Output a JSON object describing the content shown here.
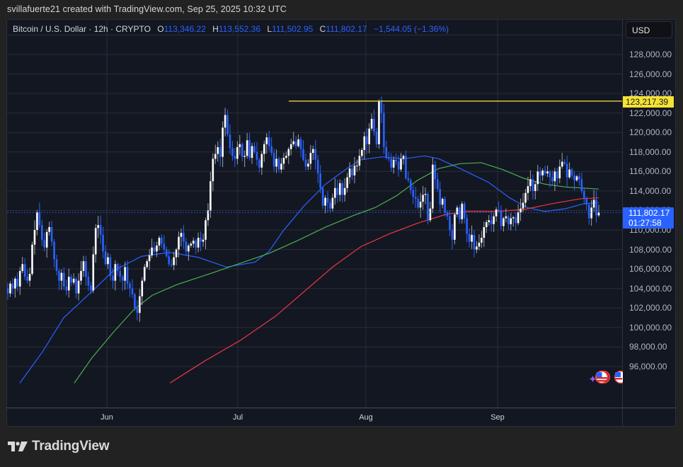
{
  "credit": "svillafuerte21 created with TradingView.com, Sep 25, 2025 10:32 UTC",
  "legend": {
    "symbol": "Bitcoin / U.S. Dollar · 12h · CRYPTO",
    "open_label": "O",
    "open": "113,346.22",
    "high_label": "H",
    "high": "113,552.36",
    "low_label": "L",
    "low": "111,502.95",
    "close_label": "C",
    "close": "111,802.17",
    "change": "−1,544.05 (−1.36%)"
  },
  "currency_button": "USD",
  "price_axis": {
    "ticks": [
      "128,000.00",
      "126,000.00",
      "124,000.00",
      "122,000.00",
      "120,000.00",
      "118,000.00",
      "116,000.00",
      "114,000.00",
      "112,000.00",
      "110,000.00",
      "108,000.00",
      "106,000.00",
      "104,000.00",
      "102,000.00",
      "100,000.00",
      "98,000.00",
      "96,000.00"
    ],
    "highlight_level": "123,217.39",
    "current_price": "111,802.17",
    "countdown": "01:27:58"
  },
  "time_axis": {
    "labels": [
      "Jun",
      "Jul",
      "Aug",
      "Sep"
    ]
  },
  "colors": {
    "up": "#ffffff",
    "down": "#2962ff",
    "ma_fast": "#2962ff",
    "ma_mid": "#4caf50",
    "ma_slow": "#f23645",
    "level_line": "#d4c43a",
    "background": "#131722",
    "grid": "#2a2e39"
  },
  "brand": "TradingView",
  "chart_data": {
    "type": "candlestick",
    "title": "Bitcoin / U.S. Dollar · 12h · CRYPTO",
    "ylabel": "USD",
    "ylim": [
      94200,
      130000
    ],
    "x_labels": [
      "Jun",
      "Jul",
      "Aug",
      "Sep"
    ],
    "horizontal_level": 123217.39,
    "last_price": 111802.17,
    "series": [
      {
        "name": "Close (approx path)",
        "values": [
          103500,
          104500,
          104000,
          105000,
          104200,
          105800,
          106500,
          105200,
          104800,
          105500,
          108500,
          110000,
          111800,
          110500,
          109000,
          108200,
          109800,
          110300,
          108800,
          107000,
          105800,
          104800,
          105600,
          104200,
          103800,
          105200,
          104600,
          105000,
          103500,
          104800,
          105800,
          106800,
          105200,
          104300,
          103800,
          107500,
          110200,
          110500,
          109500,
          107800,
          106500,
          107200,
          105300,
          104800,
          106500,
          105800,
          105200,
          104800,
          106200,
          104500,
          104000,
          103400,
          102000,
          101500,
          103200,
          104800,
          106200,
          106800,
          107400,
          108200,
          107800,
          108400,
          109200,
          108600,
          108000,
          107300,
          106500,
          106400,
          107200,
          108000,
          109300,
          109700,
          108800,
          107800,
          108400,
          108600,
          108900,
          108200,
          109200,
          108800,
          109000,
          111000,
          112000,
          115000,
          117300,
          117800,
          118500,
          117500,
          120500,
          121800,
          119800,
          118400,
          117600,
          117300,
          118500,
          118800,
          117500,
          117600,
          119200,
          117400,
          118600,
          118000,
          117200,
          116400,
          117800,
          118800,
          119500,
          118600,
          117900,
          116500,
          117300,
          116200,
          116800,
          117400,
          117600,
          118300,
          118800,
          119100,
          118600,
          119300,
          118300,
          117200,
          116500,
          116800,
          117900,
          118300,
          117200,
          115800,
          114300,
          112500,
          113300,
          112800,
          112200,
          113300,
          114300,
          113600,
          114800,
          113600,
          114300,
          115400,
          116300,
          115600,
          116600,
          116600,
          117600,
          118200,
          119600,
          118800,
          120400,
          121400,
          120100,
          118800,
          123200,
          122000,
          118500,
          117400,
          117300,
          116400,
          117200,
          117000,
          116200,
          117300,
          117600,
          115300,
          115100,
          114100,
          113400,
          113200,
          112300,
          112900,
          113600,
          113700,
          111000,
          112200,
          116700,
          115200,
          114200,
          112600,
          113200,
          111800,
          111400,
          110000,
          109000,
          111600,
          112300,
          111100,
          112700,
          111200,
          109600,
          108800,
          109500,
          108000,
          108300,
          108700,
          109200,
          110300,
          110800,
          111000,
          110600,
          111400,
          112100,
          112000,
          110400,
          111200,
          111400,
          110600,
          111200,
          111300,
          110700,
          111800,
          112200,
          112800,
          113800,
          114500,
          115200,
          114000,
          114700,
          116000,
          115600,
          116100,
          115800,
          116000,
          115400,
          115000,
          116000,
          115300,
          116500,
          117000,
          116800,
          115400,
          116200,
          115600,
          115100,
          115500,
          115200,
          114000,
          113200,
          112600,
          111200,
          112300,
          113100,
          111500,
          111800
        ]
      },
      {
        "name": "MA fast (blue)",
        "points_note": "rises from ~94k early Jun to ~117.5k mid Aug, falls to ~112.5k late Sep"
      },
      {
        "name": "MA mid (green)",
        "points_note": "rises from ~94k mid Jun to ~116.5k late Aug, ~114.2k at end"
      },
      {
        "name": "MA slow (red)",
        "points_note": "rises from ~94.2k late Jun to ~113.3k at end"
      }
    ]
  }
}
